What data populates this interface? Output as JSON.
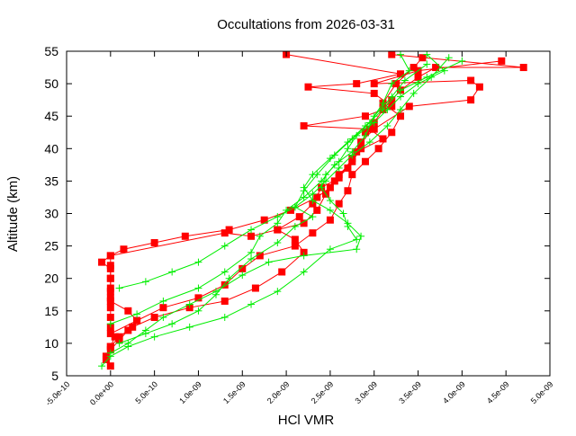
{
  "chart_data": {
    "type": "line",
    "title": "Occultations from 2026-03-31",
    "xlabel": "HCl VMR",
    "ylabel": "Altitude (km)",
    "xlim": [
      -5e-10,
      5e-09
    ],
    "ylim": [
      5,
      55
    ],
    "x_ticks": [
      "-5.0e-10",
      "0.0e+00",
      "5.0e-10",
      "1.0e-09",
      "1.5e-09",
      "2.0e-09",
      "2.5e-09",
      "3.0e-09",
      "3.5e-09",
      "4.0e-09",
      "4.5e-09",
      "5.0e-09"
    ],
    "x_tick_values": [
      -5e-10,
      0,
      5e-10,
      1e-09,
      1.5e-09,
      2e-09,
      2.5e-09,
      3e-09,
      3.5e-09,
      4e-09,
      4.5e-09,
      5e-09
    ],
    "y_ticks": [
      "5",
      "10",
      "15",
      "20",
      "25",
      "30",
      "35",
      "40",
      "45",
      "50",
      "55"
    ],
    "y_tick_values": [
      5,
      10,
      15,
      20,
      25,
      30,
      35,
      40,
      45,
      50,
      55
    ],
    "grid": false,
    "series": [
      {
        "color": "#ff0000",
        "marker": "square",
        "profiles": [
          [
            [
              0,
              6.5
            ],
            [
              -5e-11,
              8
            ],
            [
              0,
              9.5
            ],
            [
              5e-11,
              11
            ],
            [
              0,
              12.5
            ],
            [
              0,
              14
            ],
            [
              0,
              15.5
            ],
            [
              0,
              17
            ],
            [
              0,
              18.5
            ],
            [
              0,
              20
            ],
            [
              0,
              21.5
            ],
            [
              -1e-10,
              22.5
            ],
            [
              0,
              23.5
            ],
            [
              1.5e-10,
              24.5
            ],
            [
              5e-10,
              25.5
            ],
            [
              8.5e-10,
              26.5
            ],
            [
              1.35e-09,
              27.5
            ],
            [
              1.75e-09,
              29
            ],
            [
              2.05e-09,
              30.5
            ],
            [
              2.35e-09,
              32.5
            ],
            [
              2.5e-09,
              34
            ],
            [
              2.6e-09,
              36
            ],
            [
              2.75e-09,
              38
            ],
            [
              2.85e-09,
              40
            ],
            [
              2.9e-09,
              42.5
            ],
            [
              3e-09,
              44
            ],
            [
              3.1e-09,
              46
            ],
            [
              3.2e-09,
              47.5
            ],
            [
              3.3e-09,
              49
            ],
            [
              3.5e-09,
              51
            ],
            [
              3.7e-09,
              52.5
            ],
            [
              4.7e-09,
              52.5
            ],
            [
              3.2e-09,
              54.5
            ]
          ],
          [
            [
              -5e-11,
              7.5
            ],
            [
              0,
              9
            ],
            [
              1e-10,
              10.5
            ],
            [
              2e-10,
              12
            ],
            [
              3e-10,
              13.5
            ],
            [
              2e-10,
              15
            ],
            [
              0,
              16.5
            ],
            [
              0,
              18
            ],
            [
              0,
              20
            ],
            [
              0,
              22
            ],
            [
              0,
              23.5
            ],
            [
              1.3e-09,
              27
            ],
            [
              1.6e-09,
              26.5
            ],
            [
              1.9e-09,
              27.5
            ],
            [
              2.2e-09,
              28.5
            ],
            [
              2.35e-09,
              30.5
            ],
            [
              2.45e-09,
              33
            ],
            [
              2.55e-09,
              35
            ],
            [
              2.7e-09,
              37
            ],
            [
              2.8e-09,
              39.5
            ],
            [
              3.1e-09,
              41.5
            ],
            [
              2.95e-09,
              43
            ],
            [
              2.2e-09,
              43.5
            ],
            [
              2.9e-09,
              45
            ],
            [
              3.2e-09,
              46.5
            ],
            [
              3e-09,
              48.5
            ],
            [
              2.25e-09,
              49.5
            ],
            [
              2.8e-09,
              50
            ],
            [
              3.3e-09,
              51.5
            ],
            [
              2e-09,
              54.5
            ]
          ],
          [
            [
              0,
              9.5
            ],
            [
              1e-10,
              11
            ],
            [
              2.5e-10,
              12.5
            ],
            [
              5e-10,
              14
            ],
            [
              9e-10,
              15.5
            ],
            [
              1.3e-09,
              16.5
            ],
            [
              1.65e-09,
              18.5
            ],
            [
              1.95e-09,
              21
            ],
            [
              2.2e-09,
              24
            ],
            [
              2.1e-09,
              26
            ],
            [
              1.9e-09,
              27.5
            ],
            [
              2.15e-09,
              29.5
            ],
            [
              2.3e-09,
              31.5
            ],
            [
              2.4e-09,
              34
            ],
            [
              2.6e-09,
              35.5
            ],
            [
              2.75e-09,
              38.5
            ],
            [
              2.85e-09,
              41
            ],
            [
              3e-09,
              43
            ],
            [
              3.4e-09,
              46.5
            ],
            [
              4.1e-09,
              47.5
            ],
            [
              4.2e-09,
              49.5
            ],
            [
              4.1e-09,
              50.5
            ],
            [
              3e-09,
              50
            ],
            [
              3.5e-09,
              52
            ],
            [
              4.45e-09,
              53.5
            ]
          ],
          [
            [
              0,
              11.5
            ],
            [
              3e-10,
              13.5
            ],
            [
              6e-10,
              15.5
            ],
            [
              1e-09,
              17
            ],
            [
              1.3e-09,
              19
            ],
            [
              1.5e-09,
              21.5
            ],
            [
              1.7e-09,
              23.5
            ],
            [
              2.1e-09,
              25
            ],
            [
              2.3e-09,
              27
            ],
            [
              2.5e-09,
              29
            ],
            [
              2.6e-09,
              31.5
            ],
            [
              2.7e-09,
              33.5
            ],
            [
              2.75e-09,
              36
            ],
            [
              2.9e-09,
              38
            ],
            [
              3.05e-09,
              40
            ],
            [
              3.2e-09,
              42.5
            ],
            [
              3.3e-09,
              45
            ],
            [
              3.1e-09,
              47
            ],
            [
              3.25e-09,
              50
            ],
            [
              3.45e-09,
              52.5
            ],
            [
              3.55e-09,
              54
            ]
          ]
        ]
      },
      {
        "color": "#00ee00",
        "marker": "plus",
        "profiles": [
          [
            [
              -1e-10,
              6.5
            ],
            [
              0,
              8
            ],
            [
              2e-10,
              9.5
            ],
            [
              5e-10,
              11
            ],
            [
              9e-10,
              12.5
            ],
            [
              1.3e-09,
              14
            ],
            [
              1.6e-09,
              16
            ],
            [
              1.9e-09,
              18
            ],
            [
              2.2e-09,
              21
            ],
            [
              2.5e-09,
              24.5
            ],
            [
              2.8e-09,
              26
            ],
            [
              2.7e-09,
              28
            ],
            [
              2.65e-09,
              30
            ],
            [
              2.5e-09,
              32
            ],
            [
              2.4e-09,
              34
            ],
            [
              2.45e-09,
              36
            ],
            [
              2.6e-09,
              38
            ],
            [
              2.7e-09,
              40
            ],
            [
              2.8e-09,
              42
            ],
            [
              3e-09,
              44
            ],
            [
              3.15e-09,
              46
            ],
            [
              3.3e-09,
              48
            ],
            [
              3.5e-09,
              50
            ],
            [
              3.8e-09,
              52
            ],
            [
              3.6e-09,
              54.5
            ]
          ],
          [
            [
              0,
              8.5
            ],
            [
              2e-10,
              10
            ],
            [
              4e-10,
              12
            ],
            [
              6e-10,
              14
            ],
            [
              9e-10,
              16
            ],
            [
              1.2e-09,
              18
            ],
            [
              1.5e-09,
              20.5
            ],
            [
              1.8e-09,
              22.5
            ],
            [
              2.2e-09,
              23.5
            ],
            [
              2.8e-09,
              24.5
            ],
            [
              2.85e-09,
              26.5
            ],
            [
              2.7e-09,
              28.5
            ],
            [
              2.5e-09,
              30.5
            ],
            [
              2.3e-09,
              32
            ],
            [
              2.2e-09,
              34
            ],
            [
              2.3e-09,
              36
            ],
            [
              2.5e-09,
              38.5
            ],
            [
              2.7e-09,
              41
            ],
            [
              2.9e-09,
              43.5
            ],
            [
              3.1e-09,
              46
            ],
            [
              3.3e-09,
              49
            ],
            [
              3.6e-09,
              51
            ],
            [
              4e-09,
              53.5
            ]
          ],
          [
            [
              1e-10,
              10
            ],
            [
              4e-10,
              11.5
            ],
            [
              7e-10,
              13
            ],
            [
              1e-09,
              15
            ],
            [
              1.2e-09,
              17.5
            ],
            [
              1.35e-09,
              20
            ],
            [
              1.6e-09,
              23
            ],
            [
              1.9e-09,
              25.5
            ],
            [
              2.1e-09,
              28
            ],
            [
              2.3e-09,
              29.5
            ],
            [
              2.1e-09,
              31
            ],
            [
              2.2e-09,
              33.5
            ],
            [
              2.35e-09,
              36
            ],
            [
              2.55e-09,
              39
            ],
            [
              2.75e-09,
              41.5
            ],
            [
              2.95e-09,
              44
            ],
            [
              3.1e-09,
              47
            ],
            [
              3.2e-09,
              50
            ],
            [
              3.4e-09,
              52
            ],
            [
              3.3e-09,
              54.5
            ]
          ],
          [
            [
              0,
              13
            ],
            [
              3e-10,
              14.5
            ],
            [
              6e-10,
              16.5
            ],
            [
              1e-09,
              18.5
            ],
            [
              1.3e-09,
              21
            ],
            [
              1.6e-09,
              24
            ],
            [
              1.7e-09,
              26.5
            ],
            [
              1.9e-09,
              28.5
            ],
            [
              2e-09,
              30.5
            ],
            [
              2.2e-09,
              32.5
            ],
            [
              2.4e-09,
              35
            ],
            [
              2.55e-09,
              37.5
            ],
            [
              2.75e-09,
              39.5
            ],
            [
              2.9e-09,
              42
            ],
            [
              3e-09,
              45
            ],
            [
              3.2e-09,
              48
            ],
            [
              3.35e-09,
              50.5
            ],
            [
              3.6e-09,
              53
            ]
          ],
          [
            [
              1e-10,
              18.5
            ],
            [
              4e-10,
              19.5
            ],
            [
              7e-10,
              21
            ],
            [
              1e-09,
              22.5
            ],
            [
              1.3e-09,
              25
            ],
            [
              1.6e-09,
              27.5
            ],
            [
              1.9e-09,
              29.5
            ],
            [
              2.1e-09,
              31
            ],
            [
              2.3e-09,
              33
            ],
            [
              2.45e-09,
              35
            ],
            [
              2.6e-09,
              37
            ],
            [
              2.75e-09,
              39
            ],
            [
              2.95e-09,
              41
            ],
            [
              3.15e-09,
              43.5
            ],
            [
              3.3e-09,
              46
            ],
            [
              3.45e-09,
              48.5
            ],
            [
              3.65e-09,
              51
            ],
            [
              3.85e-09,
              54
            ]
          ]
        ]
      }
    ]
  }
}
